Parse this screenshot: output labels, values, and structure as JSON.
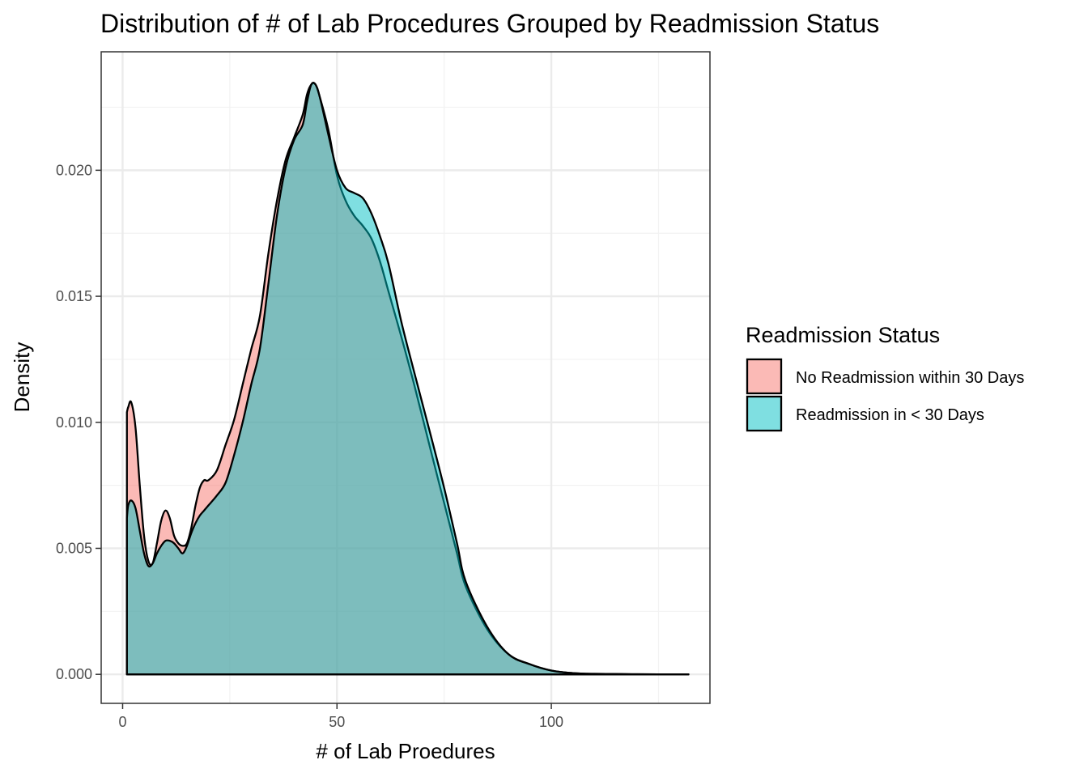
{
  "chart_data": {
    "type": "area",
    "subtype": "density",
    "title": "Distribution of # of Lab Procedures Grouped by Readmission Status",
    "xlabel": "# of Lab Proedures",
    "ylabel": "Density",
    "xlim": [
      -5,
      137
    ],
    "ylim": [
      -0.00115,
      0.0247
    ],
    "x_ticks": [
      0,
      50,
      100
    ],
    "x_tick_labels": [
      "0",
      "50",
      "100"
    ],
    "y_ticks": [
      0,
      0.005,
      0.01,
      0.015,
      0.02
    ],
    "y_tick_labels": [
      "0.000",
      "0.005",
      "0.010",
      "0.015",
      "0.020"
    ],
    "grid": true,
    "legend": {
      "title": "Readmission Status",
      "position": "right"
    },
    "series": [
      {
        "name": "No Readmission within 30 Days",
        "color": "#F8766D",
        "x": [
          1,
          1.3,
          2,
          3,
          4,
          5,
          6,
          7,
          8,
          9,
          10,
          11,
          12,
          13,
          14,
          15,
          16,
          17,
          18,
          19,
          20,
          22,
          24,
          26,
          28,
          30,
          32,
          34,
          36,
          38,
          40,
          42,
          43,
          44,
          45,
          46,
          48,
          50,
          52,
          54,
          56,
          58,
          60,
          62,
          65,
          68,
          72,
          75,
          78,
          80,
          85,
          90,
          95,
          100,
          105,
          110,
          120,
          132
        ],
        "y": [
          0.0104,
          0.0106,
          0.0108,
          0.0098,
          0.0075,
          0.0055,
          0.0045,
          0.0044,
          0.0052,
          0.0061,
          0.0065,
          0.0062,
          0.0055,
          0.0052,
          0.0051,
          0.0052,
          0.0058,
          0.0067,
          0.0074,
          0.0077,
          0.0077,
          0.0081,
          0.0091,
          0.0101,
          0.0115,
          0.0129,
          0.0142,
          0.0167,
          0.0188,
          0.0204,
          0.0213,
          0.0222,
          0.023,
          0.0234,
          0.0234,
          0.0229,
          0.0216,
          0.0198,
          0.0188,
          0.0182,
          0.0178,
          0.0173,
          0.0164,
          0.0152,
          0.0134,
          0.0115,
          0.0088,
          0.0068,
          0.0048,
          0.0035,
          0.0018,
          0.0008,
          0.0004,
          0.00015,
          5e-05,
          2e-05,
          5e-06,
          0
        ]
      },
      {
        "name": "Readmission in < 30 Days",
        "color": "#00BFC4",
        "x": [
          1,
          1.3,
          2,
          3,
          4,
          5,
          6,
          7,
          8,
          9,
          10,
          11,
          12,
          13,
          14,
          15,
          16,
          17,
          18,
          19,
          20,
          22,
          24,
          26,
          28,
          30,
          32,
          34,
          36,
          38,
          40,
          42,
          43,
          44,
          45,
          46,
          48,
          50,
          52,
          54,
          56,
          58,
          60,
          62,
          65,
          68,
          72,
          75,
          78,
          80,
          85,
          90,
          95,
          100,
          105,
          110,
          120,
          132
        ],
        "y": [
          0.0062,
          0.0067,
          0.0069,
          0.0066,
          0.0057,
          0.0048,
          0.0043,
          0.0044,
          0.0048,
          0.0051,
          0.0053,
          0.0053,
          0.0052,
          0.005,
          0.0048,
          0.0051,
          0.0056,
          0.006,
          0.0063,
          0.0065,
          0.0067,
          0.0071,
          0.0076,
          0.0087,
          0.01,
          0.0115,
          0.0129,
          0.0155,
          0.0182,
          0.0201,
          0.0212,
          0.0218,
          0.0227,
          0.0234,
          0.0234,
          0.0229,
          0.0214,
          0.02,
          0.0193,
          0.0191,
          0.0189,
          0.0183,
          0.0174,
          0.0163,
          0.014,
          0.012,
          0.0094,
          0.0074,
          0.0052,
          0.0037,
          0.0019,
          0.0008,
          0.0004,
          0.00015,
          5e-05,
          2e-05,
          5e-06,
          0
        ]
      }
    ]
  }
}
